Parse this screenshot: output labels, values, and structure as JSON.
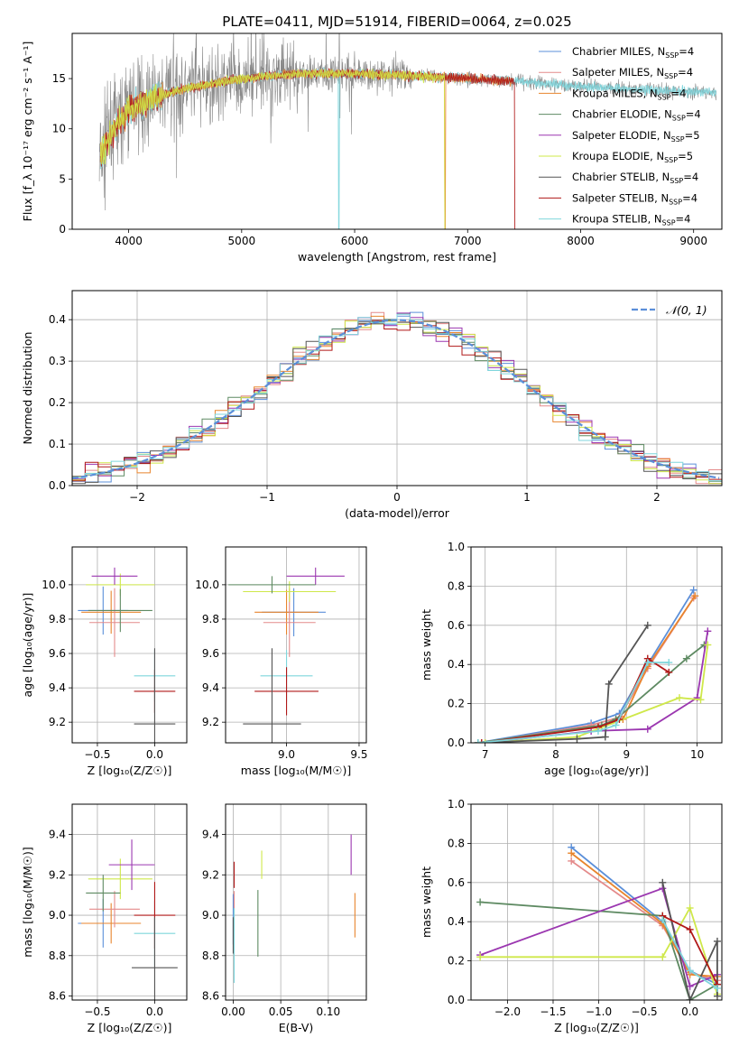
{
  "title": "PLATE=0411, MJD=51914, FIBERID=0064, z=0.025",
  "colors": {
    "chabrier_miles": "#5b8fd9",
    "salpeter_miles": "#e48a8a",
    "kroupa_miles": "#e8852e",
    "chabrier_elodie": "#5e8a62",
    "salpeter_elodie": "#9b37b0",
    "kroupa_elodie": "#cfe84a",
    "chabrier_stelib": "#555555",
    "salpeter_stelib": "#b01818",
    "kroupa_stelib": "#7fd6dc",
    "data": "#888888",
    "normal": "#5b8fd9"
  },
  "chart_data": [
    {
      "id": "spectrum",
      "type": "line",
      "xlabel": "wavelength [Angstrom, rest frame]",
      "ylabel": "Flux [f_λ 10⁻¹⁷ erg cm⁻² s⁻¹ A⁻¹]",
      "xlim": [
        3500,
        9250
      ],
      "ylim": [
        0,
        19.5
      ],
      "xticks": [
        "4000",
        "5000",
        "6000",
        "7000",
        "8000",
        "9000"
      ],
      "yticks": [
        "0",
        "5",
        "10",
        "15"
      ],
      "legend_position": "upper-right",
      "legend": [
        {
          "name": "Chabrier MILES, N",
          "sub": "SSP",
          "tail": "=4",
          "color": "chabrier_miles"
        },
        {
          "name": "Salpeter MILES, N",
          "sub": "SSP",
          "tail": "=4",
          "color": "salpeter_miles"
        },
        {
          "name": "Kroupa MILES, N",
          "sub": "SSP",
          "tail": "=4",
          "color": "kroupa_miles"
        },
        {
          "name": "Chabrier ELODIE, N",
          "sub": "SSP",
          "tail": "=4",
          "color": "chabrier_elodie"
        },
        {
          "name": "Salpeter ELODIE, N",
          "sub": "SSP",
          "tail": "=5",
          "color": "salpeter_elodie"
        },
        {
          "name": "Kroupa ELODIE, N",
          "sub": "SSP",
          "tail": "=5",
          "color": "kroupa_elodie"
        },
        {
          "name": "Chabrier STELIB, N",
          "sub": "SSP",
          "tail": "=4",
          "color": "chabrier_stelib"
        },
        {
          "name": "Salpeter STELIB, N",
          "sub": "SSP",
          "tail": "=4",
          "color": "salpeter_stelib"
        },
        {
          "name": "Kroupa STELIB, N",
          "sub": "SSP",
          "tail": "=4",
          "color": "kroupa_stelib"
        }
      ],
      "continuum": [
        [
          3700,
          6
        ],
        [
          3800,
          8.5
        ],
        [
          3900,
          10.5
        ],
        [
          4000,
          12
        ],
        [
          4200,
          13
        ],
        [
          4500,
          14
        ],
        [
          5000,
          15
        ],
        [
          5500,
          15.5
        ],
        [
          6000,
          15.5
        ],
        [
          6500,
          15.3
        ],
        [
          7000,
          15
        ],
        [
          7500,
          14.7
        ],
        [
          8000,
          14.2
        ],
        [
          8500,
          13.9
        ],
        [
          9000,
          13.7
        ],
        [
          9200,
          13.6
        ]
      ],
      "model_segments": [
        {
          "series": "kroupa_stelib",
          "x": [
            3750,
            9200
          ],
          "drop": 5860
        },
        {
          "series": "kroupa_miles",
          "x": [
            3750,
            7400
          ],
          "drop": 6800
        },
        {
          "series": "salpeter_stelib",
          "x": [
            3750,
            7420
          ],
          "drop": 7420
        },
        {
          "series": "kroupa_elodie",
          "x": [
            3750,
            6800
          ],
          "drop": 6800
        }
      ]
    },
    {
      "id": "residuals",
      "type": "line",
      "xlabel": "(data-model)/error",
      "ylabel": "Normed distribution",
      "xlim": [
        -2.5,
        2.5
      ],
      "ylim": [
        0,
        0.47
      ],
      "xticks": [
        "−2",
        "−1",
        "0",
        "1",
        "2"
      ],
      "yticks": [
        "0.0",
        "0.1",
        "0.2",
        "0.3",
        "0.4"
      ],
      "legend": "𝒩(0, 1)",
      "legend_position": "upper-right",
      "grid": true
    },
    {
      "id": "age_vs_Z",
      "type": "scatter",
      "xlabel": "Z [log₁₀(Z/Z☉)]",
      "ylabel": "age  [log₁₀(age/yr)]",
      "xlim": [
        -0.72,
        0.28
      ],
      "ylim": [
        9.08,
        10.22
      ],
      "xticks": [
        "−0.5",
        "0.0"
      ],
      "yticks": [
        "9.2",
        "9.4",
        "9.6",
        "9.8",
        "10.0"
      ],
      "grid": true,
      "points": [
        {
          "x": -0.45,
          "y": 9.85,
          "xerr": 0.22,
          "yerr": 0.28,
          "c": "chabrier_miles"
        },
        {
          "x": -0.38,
          "y": 9.84,
          "xerr": 0.26,
          "yerr": 0.25,
          "c": "kroupa_miles"
        },
        {
          "x": -0.35,
          "y": 9.78,
          "xerr": 0.22,
          "yerr": 0.4,
          "c": "salpeter_miles"
        },
        {
          "x": -0.3,
          "y": 10.0,
          "xerr": 0.3,
          "yerr": 0.13,
          "c": "kroupa_elodie"
        },
        {
          "x": -0.35,
          "y": 10.05,
          "xerr": 0.2,
          "yerr": 0.1,
          "c": "salpeter_elodie"
        },
        {
          "x": -0.3,
          "y": 9.85,
          "xerr": 0.28,
          "yerr": 0.25,
          "c": "chabrier_elodie"
        },
        {
          "x": 0.0,
          "y": 9.47,
          "xerr": 0.18,
          "yerr": 0.3,
          "c": "kroupa_stelib"
        },
        {
          "x": 0.0,
          "y": 9.38,
          "xerr": 0.18,
          "yerr": 0.25,
          "c": "salpeter_stelib"
        },
        {
          "x": 0.0,
          "y": 9.19,
          "xerr": 0.18,
          "yerr": 0.88,
          "c": "chabrier_stelib"
        }
      ]
    },
    {
      "id": "age_vs_mass",
      "type": "scatter",
      "xlabel": "mass [log₁₀(M/M☉)]",
      "ylabel": "",
      "xlim": [
        8.58,
        9.55
      ],
      "ylim": [
        9.08,
        10.22
      ],
      "xticks": [
        "9.0",
        "9.5"
      ],
      "yticks": [
        "9.2",
        "9.4",
        "9.6",
        "9.8",
        "10.0"
      ],
      "grid": true,
      "points": [
        {
          "x": 9.05,
          "y": 9.84,
          "xerr": 0.22,
          "yerr": 0.28,
          "c": "chabrier_miles"
        },
        {
          "x": 9.0,
          "y": 9.84,
          "xerr": 0.22,
          "yerr": 0.26,
          "c": "kroupa_miles"
        },
        {
          "x": 9.02,
          "y": 9.78,
          "xerr": 0.18,
          "yerr": 0.4,
          "c": "salpeter_miles"
        },
        {
          "x": 9.02,
          "y": 9.96,
          "xerr": 0.32,
          "yerr": 0.12,
          "c": "kroupa_elodie"
        },
        {
          "x": 9.2,
          "y": 10.05,
          "xerr": 0.2,
          "yerr": 0.1,
          "c": "salpeter_elodie"
        },
        {
          "x": 8.9,
          "y": 10.0,
          "xerr": 0.3,
          "yerr": 0.1,
          "c": "chabrier_elodie"
        },
        {
          "x": 9.0,
          "y": 9.47,
          "xerr": 0.18,
          "yerr": 0.3,
          "c": "kroupa_stelib"
        },
        {
          "x": 9.0,
          "y": 9.38,
          "xerr": 0.22,
          "yerr": 0.28,
          "c": "salpeter_stelib"
        },
        {
          "x": 8.9,
          "y": 9.19,
          "xerr": 0.2,
          "yerr": 0.88,
          "c": "chabrier_stelib"
        }
      ]
    },
    {
      "id": "mass_weight_vs_age",
      "type": "line",
      "xlabel": "age  [log₁₀(age/yr)]",
      "ylabel": "mass weight",
      "xlim": [
        6.8,
        10.35
      ],
      "ylim": [
        0,
        1.0
      ],
      "xticks": [
        "7",
        "8",
        "9",
        "10"
      ],
      "yticks": [
        "0.0",
        "0.2",
        "0.4",
        "0.6",
        "0.8",
        "1.0"
      ],
      "grid": true,
      "series": [
        {
          "c": "chabrier_miles",
          "x": [
            6.9,
            8.5,
            8.9,
            9.3,
            9.95
          ],
          "y": [
            0.0,
            0.1,
            0.15,
            0.4,
            0.78
          ]
        },
        {
          "c": "salpeter_miles",
          "x": [
            6.95,
            8.5,
            8.9,
            9.3,
            9.95
          ],
          "y": [
            0.0,
            0.09,
            0.13,
            0.38,
            0.74
          ]
        },
        {
          "c": "kroupa_miles",
          "x": [
            6.9,
            8.6,
            8.95,
            9.3,
            9.97
          ],
          "y": [
            0.0,
            0.08,
            0.12,
            0.39,
            0.75
          ]
        },
        {
          "c": "chabrier_elodie",
          "x": [
            6.9,
            8.65,
            8.85,
            9.85,
            10.1
          ],
          "y": [
            0.0,
            0.09,
            0.12,
            0.43,
            0.5
          ]
        },
        {
          "c": "salpeter_elodie",
          "x": [
            7.0,
            8.5,
            9.3,
            10.0,
            10.15
          ],
          "y": [
            0.0,
            0.06,
            0.07,
            0.23,
            0.57
          ]
        },
        {
          "c": "kroupa_elodie",
          "x": [
            7.0,
            8.3,
            9.75,
            10.05,
            10.15
          ],
          "y": [
            0.0,
            0.03,
            0.23,
            0.22,
            0.5
          ]
        },
        {
          "c": "chabrier_stelib",
          "x": [
            6.9,
            8.3,
            8.7,
            8.75,
            9.3
          ],
          "y": [
            0.0,
            0.02,
            0.03,
            0.3,
            0.6
          ]
        },
        {
          "c": "salpeter_stelib",
          "x": [
            6.95,
            8.6,
            8.9,
            9.3,
            9.6
          ],
          "y": [
            0.0,
            0.08,
            0.12,
            0.43,
            0.36
          ]
        },
        {
          "c": "kroupa_stelib",
          "x": [
            6.9,
            8.6,
            8.85,
            9.3,
            9.6
          ],
          "y": [
            0.0,
            0.06,
            0.09,
            0.41,
            0.41
          ]
        }
      ]
    },
    {
      "id": "mass_vs_Z",
      "type": "scatter",
      "xlabel": "Z [log₁₀(Z/Z☉)]",
      "ylabel": "mass [log₁₀(M/M☉)]",
      "xlim": [
        -0.72,
        0.28
      ],
      "ylim": [
        8.58,
        9.55
      ],
      "xticks": [
        "−0.5",
        "0.0"
      ],
      "yticks": [
        "8.6",
        "8.8",
        "9.0",
        "9.2",
        "9.4"
      ],
      "grid": true,
      "points": [
        {
          "x": -0.45,
          "y": 8.96,
          "xerr": 0.22,
          "yerr": 0.24,
          "c": "chabrier_miles"
        },
        {
          "x": -0.38,
          "y": 8.96,
          "xerr": 0.26,
          "yerr": 0.2,
          "c": "kroupa_miles"
        },
        {
          "x": -0.35,
          "y": 9.03,
          "xerr": 0.22,
          "yerr": 0.18,
          "c": "salpeter_miles"
        },
        {
          "x": -0.3,
          "y": 9.18,
          "xerr": 0.28,
          "yerr": 0.2,
          "c": "kroupa_elodie"
        },
        {
          "x": -0.2,
          "y": 9.25,
          "xerr": 0.2,
          "yerr": 0.25,
          "c": "salpeter_elodie"
        },
        {
          "x": -0.45,
          "y": 9.11,
          "xerr": 0.15,
          "yerr": 0.18,
          "c": "chabrier_elodie"
        },
        {
          "x": 0.0,
          "y": 8.91,
          "xerr": 0.18,
          "yerr": 0.32,
          "c": "kroupa_stelib"
        },
        {
          "x": 0.0,
          "y": 9.0,
          "xerr": 0.18,
          "yerr": 0.33,
          "c": "salpeter_stelib"
        },
        {
          "x": 0.0,
          "y": 8.74,
          "xerr": 0.2,
          "yerr": 0.5,
          "c": "chabrier_stelib"
        }
      ]
    },
    {
      "id": "mass_vs_ebv",
      "type": "scatter",
      "xlabel": "E(B-V)",
      "ylabel": "",
      "xlim": [
        -0.008,
        0.14
      ],
      "ylim": [
        8.58,
        9.55
      ],
      "xticks": [
        "0.00",
        "0.05",
        "0.10"
      ],
      "yticks": [
        "8.6",
        "8.8",
        "9.0",
        "9.2",
        "9.4"
      ],
      "grid": true,
      "points": [
        {
          "x": 0.0,
          "y": 8.98,
          "xerr": 0,
          "yerr": 0.25,
          "c": "chabrier_miles"
        },
        {
          "x": 0.128,
          "y": 9.0,
          "xerr": 0,
          "yerr": 0.22,
          "c": "kroupa_miles"
        },
        {
          "x": 0.001,
          "y": 9.02,
          "xerr": 0,
          "yerr": 0.2,
          "c": "salpeter_miles"
        },
        {
          "x": 0.03,
          "y": 9.25,
          "xerr": 0,
          "yerr": 0.14,
          "c": "kroupa_elodie"
        },
        {
          "x": 0.124,
          "y": 9.3,
          "xerr": 0,
          "yerr": 0.2,
          "c": "salpeter_elodie"
        },
        {
          "x": 0.026,
          "y": 8.96,
          "xerr": 0,
          "yerr": 0.33,
          "c": "chabrier_elodie"
        },
        {
          "x": 0.001,
          "y": 8.85,
          "xerr": 0,
          "yerr": 0.37,
          "c": "kroupa_stelib"
        },
        {
          "x": 0.001,
          "y": 9.2,
          "xerr": 0,
          "yerr": 0.13,
          "c": "salpeter_stelib"
        },
        {
          "x": 0.0,
          "y": 8.9,
          "xerr": 0,
          "yerr": 0.18,
          "c": "chabrier_stelib"
        }
      ]
    },
    {
      "id": "mass_weight_vs_Z",
      "type": "line",
      "xlabel": "Z [log₁₀(Z/Z☉)]",
      "ylabel": "mass weight",
      "xlim": [
        -2.4,
        0.35
      ],
      "ylim": [
        0,
        1.0
      ],
      "xticks": [
        "−2.0",
        "−1.5",
        "−1.0",
        "−0.5",
        "0.0"
      ],
      "yticks": [
        "0.0",
        "0.2",
        "0.4",
        "0.6",
        "0.8",
        "1.0"
      ],
      "grid": true,
      "series": [
        {
          "c": "chabrier_miles",
          "x": [
            -1.3,
            -0.3,
            0.0,
            0.3
          ],
          "y": [
            0.78,
            0.4,
            0.15,
            0.08
          ]
        },
        {
          "c": "salpeter_miles",
          "x": [
            -1.3,
            -0.3,
            0.0,
            0.3
          ],
          "y": [
            0.71,
            0.38,
            0.14,
            0.1
          ]
        },
        {
          "c": "kroupa_miles",
          "x": [
            -1.3,
            -0.3,
            0.0,
            0.3
          ],
          "y": [
            0.75,
            0.39,
            0.13,
            0.12
          ]
        },
        {
          "c": "chabrier_elodie",
          "x": [
            -2.3,
            -0.3,
            0.0,
            0.3
          ],
          "y": [
            0.5,
            0.43,
            0.0,
            0.08
          ]
        },
        {
          "c": "salpeter_elodie",
          "x": [
            -2.3,
            -0.3,
            0.0,
            0.3
          ],
          "y": [
            0.23,
            0.57,
            0.07,
            0.13
          ]
        },
        {
          "c": "kroupa_elodie",
          "x": [
            -2.3,
            -0.3,
            0.0,
            0.3
          ],
          "y": [
            0.22,
            0.22,
            0.47,
            0.03
          ]
        },
        {
          "c": "chabrier_stelib",
          "x": [
            -0.3,
            0.0,
            0.3,
            0.3
          ],
          "y": [
            0.6,
            0.0,
            0.3,
            0.02
          ]
        },
        {
          "c": "salpeter_stelib",
          "x": [
            -0.3,
            0.0,
            0.3
          ],
          "y": [
            0.43,
            0.36,
            0.08
          ]
        },
        {
          "c": "kroupa_stelib",
          "x": [
            -0.3,
            0.0,
            0.3
          ],
          "y": [
            0.41,
            0.15,
            0.06
          ]
        }
      ]
    }
  ]
}
